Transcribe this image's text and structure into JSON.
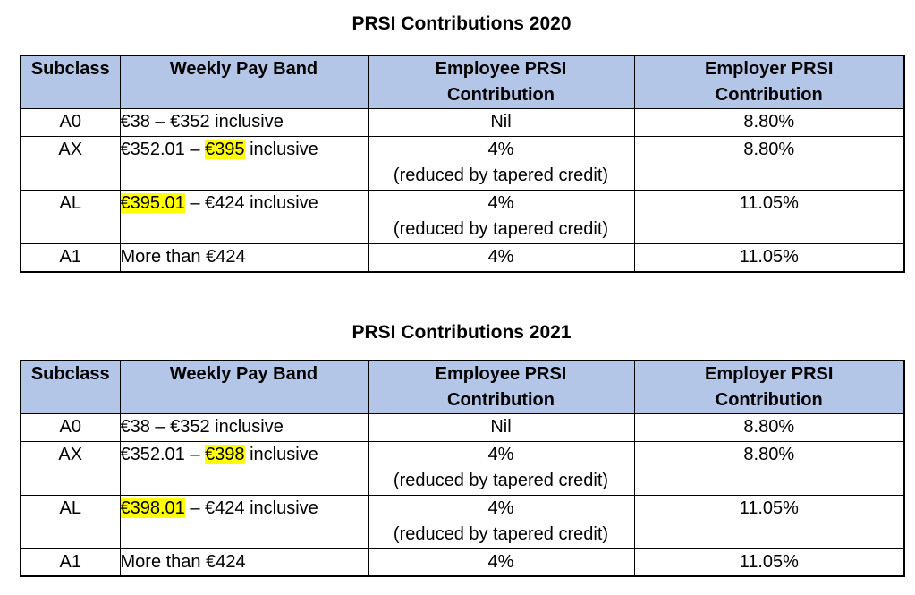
{
  "colors": {
    "header_bg": "#b4c6e7",
    "highlight": "#ffff00",
    "border": "#000000",
    "text": "#000000",
    "background": "#ffffff"
  },
  "tables": [
    {
      "title": "PRSI Contributions 2020",
      "columns": [
        {
          "key": "subclass",
          "lines": [
            "Subclass"
          ]
        },
        {
          "key": "band",
          "lines": [
            "Weekly Pay Band"
          ]
        },
        {
          "key": "employee",
          "lines": [
            "Employee PRSI",
            "Contribution"
          ]
        },
        {
          "key": "employer",
          "lines": [
            "Employer PRSI",
            "Contribution"
          ]
        }
      ],
      "rows": [
        {
          "subclass": "A0",
          "band": [
            {
              "text": "€38 – €352 inclusive"
            }
          ],
          "employee": [
            "Nil"
          ],
          "employer": "8.80%"
        },
        {
          "subclass": "AX",
          "band": [
            {
              "text": "€352.01 – "
            },
            {
              "text": "€395",
              "highlight": true
            },
            {
              "text": " inclusive"
            }
          ],
          "employee": [
            "4%",
            "(reduced by tapered credit)"
          ],
          "employer": "8.80%"
        },
        {
          "subclass": "AL",
          "band": [
            {
              "text": "€395.01",
              "highlight": true
            },
            {
              "text": " – €424 inclusive"
            }
          ],
          "employee": [
            "4%",
            "(reduced by tapered credit)"
          ],
          "employer": "11.05%"
        },
        {
          "subclass": "A1",
          "band": [
            {
              "text": "More than €424"
            }
          ],
          "employee": [
            "4%"
          ],
          "employer": "11.05%"
        }
      ]
    },
    {
      "title": "PRSI Contributions 2021",
      "columns": [
        {
          "key": "subclass",
          "lines": [
            "Subclass"
          ]
        },
        {
          "key": "band",
          "lines": [
            "Weekly Pay Band"
          ]
        },
        {
          "key": "employee",
          "lines": [
            "Employee PRSI",
            "Contribution"
          ]
        },
        {
          "key": "employer",
          "lines": [
            "Employer PRSI",
            "Contribution"
          ]
        }
      ],
      "rows": [
        {
          "subclass": "A0",
          "band": [
            {
              "text": "€38 – €352 inclusive"
            }
          ],
          "employee": [
            "Nil"
          ],
          "employer": "8.80%"
        },
        {
          "subclass": "AX",
          "band": [
            {
              "text": "€352.01 – "
            },
            {
              "text": "€398",
              "highlight": true
            },
            {
              "text": " inclusive"
            }
          ],
          "employee": [
            "4%",
            "(reduced by tapered credit)"
          ],
          "employer": "8.80%"
        },
        {
          "subclass": "AL",
          "band": [
            {
              "text": "€398.01",
              "highlight": true
            },
            {
              "text": " – €424 inclusive"
            }
          ],
          "employee": [
            "4%",
            "(reduced by tapered credit)"
          ],
          "employer": "11.05%"
        },
        {
          "subclass": "A1",
          "band": [
            {
              "text": "More than €424"
            }
          ],
          "employee": [
            "4%"
          ],
          "employer": "11.05%"
        }
      ]
    }
  ]
}
